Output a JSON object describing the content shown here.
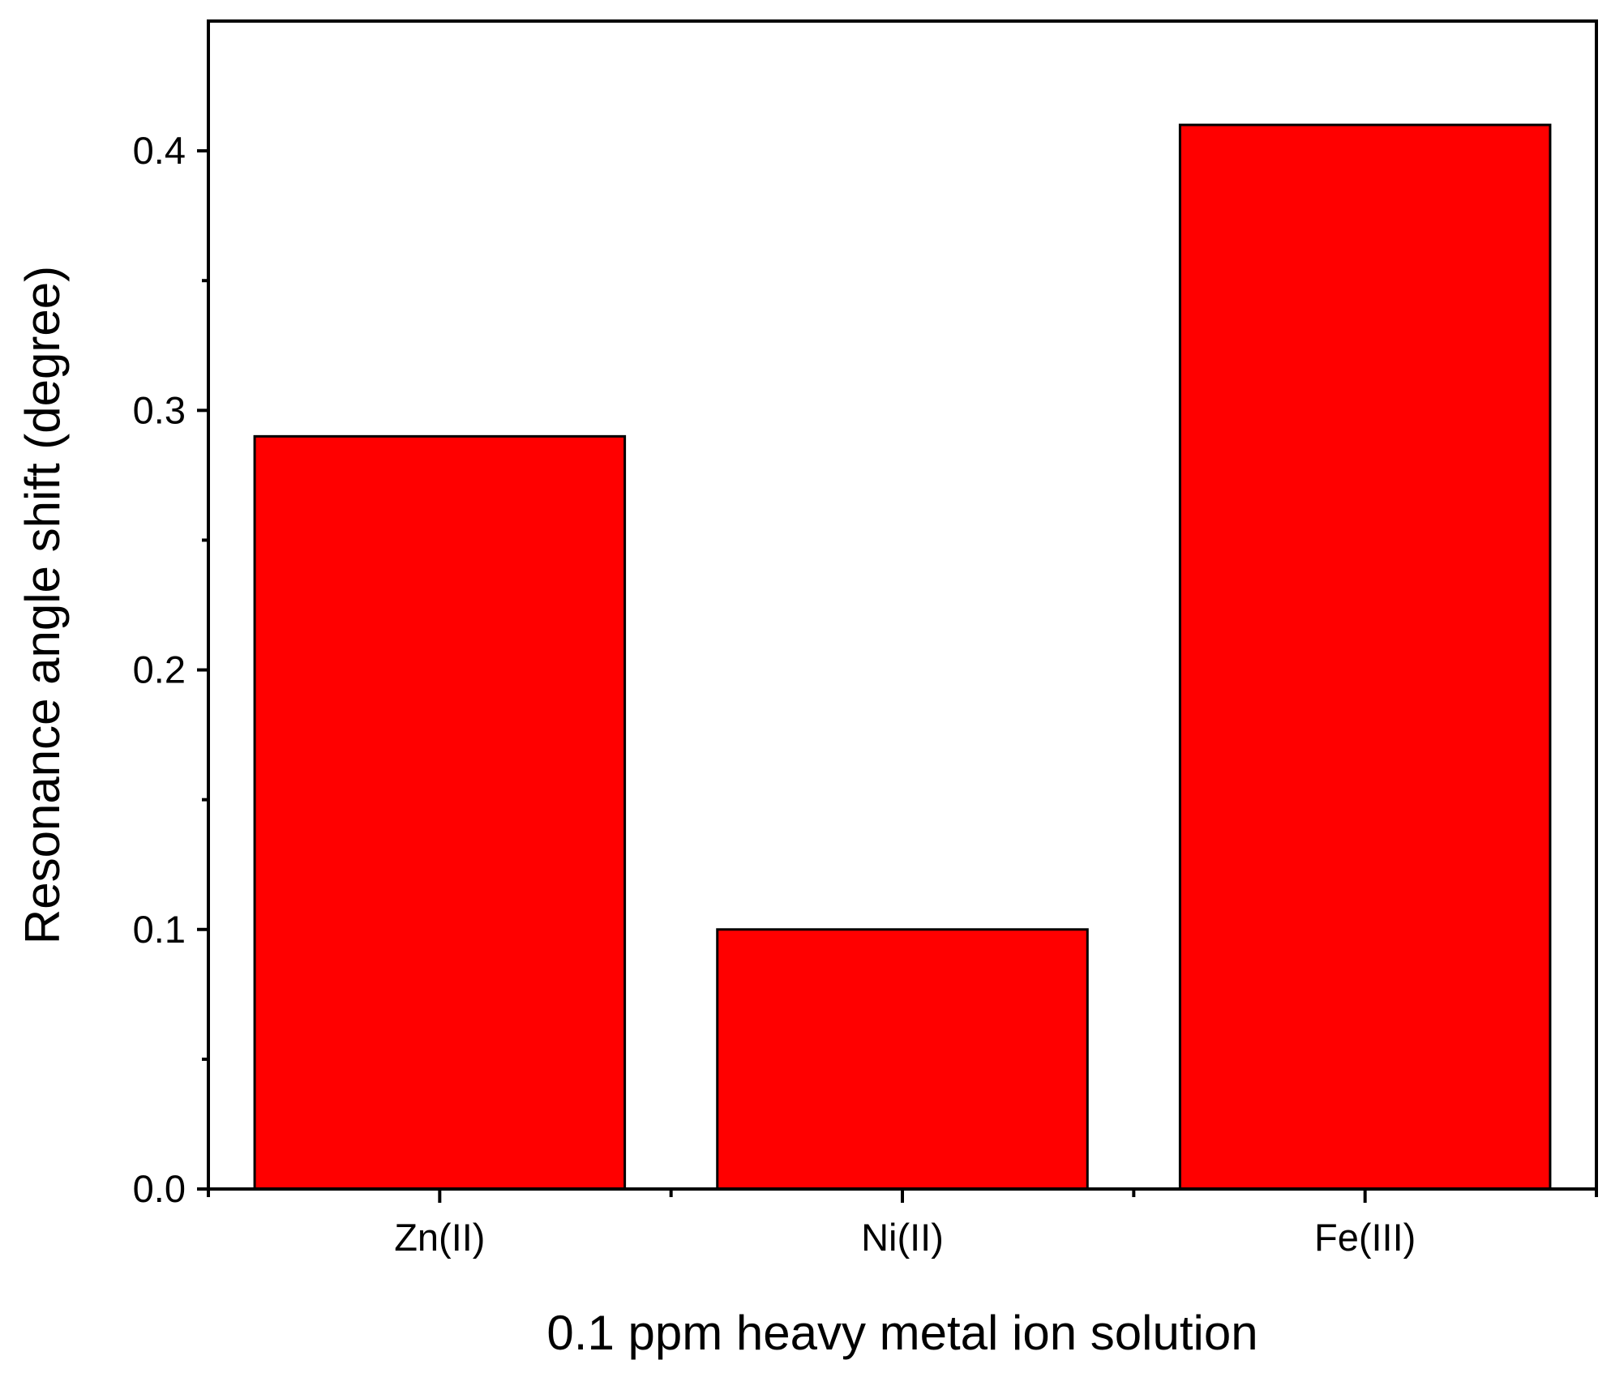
{
  "chart_data": {
    "type": "bar",
    "categories": [
      "Zn(II)",
      "Ni(II)",
      "Fe(III)"
    ],
    "values": [
      0.29,
      0.1,
      0.41
    ],
    "title": "",
    "xlabel": "0.1 ppm heavy metal ion solution",
    "ylabel": "Resonance angle shift (degree)",
    "ylim": [
      0,
      0.45
    ],
    "yticks": [
      0.0,
      0.1,
      0.2,
      0.3,
      0.4
    ],
    "ytick_labels": [
      "0.0",
      "0.1",
      "0.2",
      "0.3",
      "0.4"
    ],
    "grid": false,
    "legend": "none",
    "bar_color": "#ff0000",
    "bar_edge_color": "#000000"
  }
}
